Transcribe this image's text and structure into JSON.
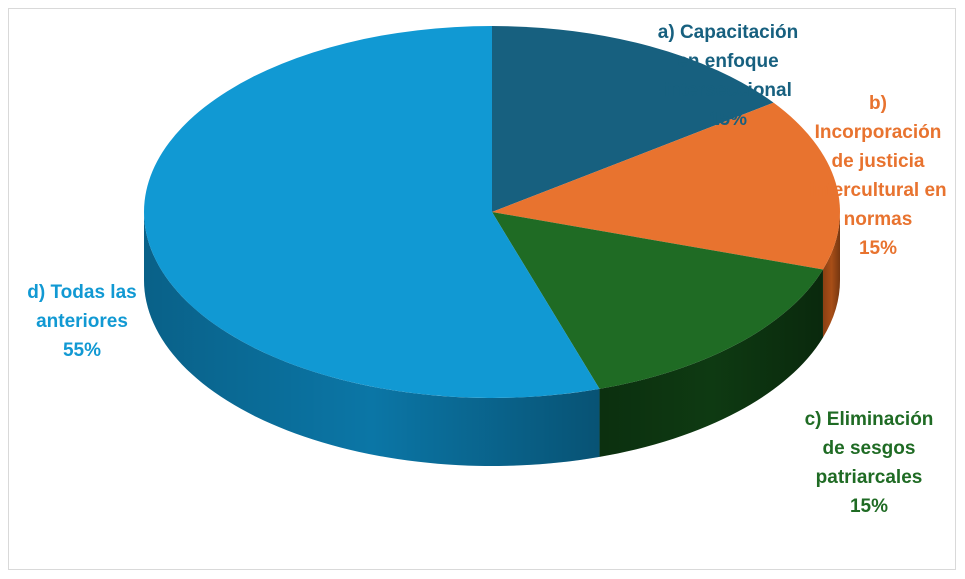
{
  "chart_data": {
    "type": "pie",
    "style": "3d",
    "slices": [
      {
        "label_lines": [
          "a) Capacitación",
          "en enfoque",
          "interseccional"
        ],
        "category": "a) Capacitación en enfoque interseccional",
        "value": 15,
        "value_label": "15%",
        "color": "#17607f",
        "side_color": "#0e3f55"
      },
      {
        "label_lines": [
          "b)",
          "Incorporación",
          "de justicia",
          "intercultural en",
          "normas"
        ],
        "category": "b) Incorporación de justicia intercultural en normas",
        "value": 15,
        "value_label": "15%",
        "color": "#e8732f",
        "side_color": "#a84e17"
      },
      {
        "label_lines": [
          "c) Eliminación",
          "de sesgos",
          "patriarcales"
        ],
        "category": "c) Eliminación de sesgos patriarcales",
        "value": 15,
        "value_label": "15%",
        "color": "#1f6b24",
        "side_color": "#0e3a12"
      },
      {
        "label_lines": [
          "d) Todas las",
          "anteriores"
        ],
        "category": "d) Todas las anteriores",
        "value": 55,
        "value_label": "55%",
        "color": "#1199d3",
        "side_color": "#0b76a6"
      }
    ],
    "legend": "none",
    "data_labels": "category and percentage"
  }
}
